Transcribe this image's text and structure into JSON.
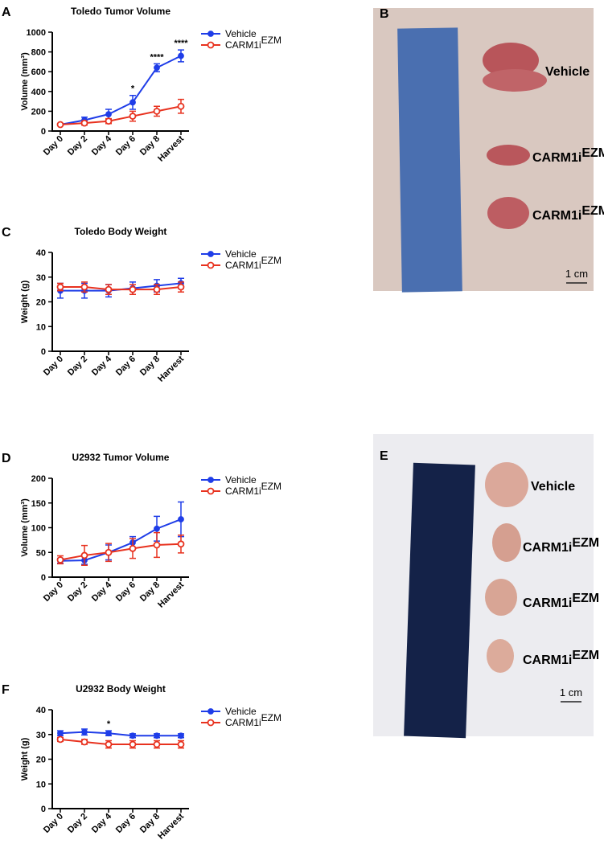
{
  "chart_data": [
    {
      "type": "line",
      "panel": "A",
      "title": "Toledo Tumor Volume",
      "ylabel": "Volume (mm³)",
      "categories": [
        "Day 0",
        "Day 2",
        "Day 4",
        "Day 6",
        "Day 8",
        "Harvest"
      ],
      "ylim": [
        0,
        1000
      ],
      "yticks": [
        0,
        200,
        400,
        600,
        800,
        1000
      ],
      "series": [
        {
          "name": "Vehicle",
          "color": "#1f3de8",
          "marker": "filled",
          "values": [
            65,
            110,
            170,
            290,
            640,
            760
          ],
          "errors": [
            10,
            30,
            50,
            70,
            40,
            60
          ]
        },
        {
          "name": "CARM1i",
          "name_superscript": "EZM",
          "color": "#e8321f",
          "marker": "open",
          "values": [
            65,
            80,
            100,
            150,
            200,
            250
          ],
          "errors": [
            10,
            20,
            25,
            50,
            50,
            70
          ]
        }
      ],
      "annotations": [
        {
          "category": "Day 6",
          "text": "*"
        },
        {
          "category": "Day 8",
          "text": "****"
        },
        {
          "category": "Harvest",
          "text": "****"
        }
      ]
    },
    {
      "type": "line",
      "panel": "C",
      "title": "Toledo Body Weight",
      "ylabel": "Weight (g)",
      "categories": [
        "Day 0",
        "Day 2",
        "Day 4",
        "Day 6",
        "Day 8",
        "Harvest"
      ],
      "ylim": [
        0,
        40
      ],
      "yticks": [
        0,
        10,
        20,
        30,
        40
      ],
      "series": [
        {
          "name": "Vehicle",
          "color": "#1f3de8",
          "marker": "filled",
          "values": [
            24.5,
            24.5,
            24.5,
            25.5,
            26.5,
            27.5
          ],
          "errors": [
            3,
            3,
            2.5,
            2.5,
            2.5,
            2
          ]
        },
        {
          "name": "CARM1i",
          "name_superscript": "EZM",
          "color": "#e8321f",
          "marker": "open",
          "values": [
            26,
            26,
            25,
            25,
            25,
            26
          ],
          "errors": [
            1.5,
            2,
            2,
            2,
            2,
            2
          ]
        }
      ],
      "annotations": []
    },
    {
      "type": "line",
      "panel": "D",
      "title": "U2932 Tumor Volume",
      "ylabel": "Volume (mm³)",
      "categories": [
        "Day 0",
        "Day 2",
        "Day 4",
        "Day 6",
        "Day 8",
        "Harvest"
      ],
      "ylim": [
        0,
        200
      ],
      "yticks": [
        0,
        50,
        100,
        150,
        200
      ],
      "series": [
        {
          "name": "Vehicle",
          "color": "#1f3de8",
          "marker": "filled",
          "values": [
            33,
            34,
            50,
            70,
            98,
            117
          ],
          "errors": [
            5,
            8,
            15,
            12,
            25,
            35
          ]
        },
        {
          "name": "CARM1i",
          "name_superscript": "EZM",
          "color": "#e8321f",
          "marker": "open",
          "values": [
            35,
            44,
            50,
            58,
            65,
            67
          ],
          "errors": [
            8,
            20,
            18,
            20,
            25,
            18
          ]
        }
      ],
      "annotations": []
    },
    {
      "type": "line",
      "panel": "F",
      "title": "U2932 Body Weight",
      "ylabel": "Weight (g)",
      "categories": [
        "Day 0",
        "Day 2",
        "Day 4",
        "Day 6",
        "Day 8",
        "Harvest"
      ],
      "ylim": [
        0,
        40
      ],
      "yticks": [
        0,
        10,
        20,
        30,
        40
      ],
      "series": [
        {
          "name": "Vehicle",
          "color": "#1f3de8",
          "marker": "filled",
          "values": [
            30.5,
            31,
            30.5,
            29.5,
            29.5,
            29.5
          ],
          "errors": [
            1,
            1.2,
            1,
            0.8,
            0.8,
            0.8
          ]
        },
        {
          "name": "CARM1i",
          "name_superscript": "EZM",
          "color": "#e8321f",
          "marker": "open",
          "values": [
            28,
            27,
            26,
            26,
            26,
            26
          ],
          "errors": [
            0.8,
            1,
            1.5,
            1.5,
            1.5,
            1.5
          ]
        }
      ],
      "annotations": [
        {
          "category": "Day 4",
          "text": "*"
        }
      ]
    }
  ],
  "photos": [
    {
      "panel": "B",
      "labels": [
        {
          "text": "Vehicle"
        },
        {
          "text": "CARM1i",
          "superscript": "EZM"
        },
        {
          "text": "CARM1i",
          "superscript": "EZM"
        }
      ],
      "scale": "1 cm"
    },
    {
      "panel": "E",
      "labels": [
        {
          "text": "Vehicle"
        },
        {
          "text": "CARM1i",
          "superscript": "EZM"
        },
        {
          "text": "CARM1i",
          "superscript": "EZM"
        },
        {
          "text": "CARM1i",
          "superscript": "EZM"
        }
      ],
      "scale": "1 cm"
    }
  ]
}
